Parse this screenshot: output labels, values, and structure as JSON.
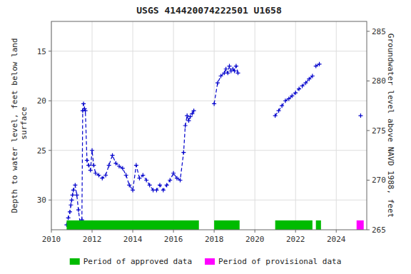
{
  "chart_data": {
    "type": "line",
    "title": "USGS 414420074222501 U1658",
    "y_label": "Depth to water level, feet below land\n surface",
    "y2_label": "Groundwater level above NAVD 1988, feet",
    "xlim": [
      2010,
      2025.5
    ],
    "xticks": [
      2010,
      2012,
      2014,
      2016,
      2018,
      2020,
      2022,
      2024
    ],
    "ylim": [
      33,
      12
    ],
    "yticks": [
      15,
      20,
      25,
      30
    ],
    "y2lim": [
      265,
      286
    ],
    "y2ticks": [
      265,
      270,
      275,
      280,
      285
    ],
    "grid": true,
    "legend": "bottom",
    "x": [
      2010.75,
      2010.83,
      2010.91,
      2010.96,
      2011.0,
      2011.04,
      2011.08,
      2011.17,
      2011.25,
      2011.33,
      2011.42,
      2011.5,
      2011.54,
      2011.58,
      2011.63,
      2011.67,
      2011.75,
      2011.83,
      2011.92,
      2012.0,
      2012.08,
      2012.17,
      2012.33,
      2012.5,
      2012.67,
      2012.83,
      2013.0,
      2013.17,
      2013.33,
      2013.5,
      2013.67,
      2013.83,
      2014.0,
      2014.17,
      2014.33,
      2014.5,
      2014.67,
      2014.83,
      2015.0,
      2015.17,
      2015.33,
      2015.5,
      2015.67,
      2015.83,
      2016.0,
      2016.17,
      2016.33,
      2016.5,
      2016.58,
      2016.67,
      2016.75,
      2016.83,
      2016.92,
      2017.0,
      null,
      2018.0,
      2018.17,
      2018.33,
      2018.5,
      2018.58,
      2018.67,
      2018.75,
      2018.83,
      2018.92,
      2019.0,
      2019.08,
      2019.17,
      null,
      2021.0,
      2021.17,
      2021.33,
      2021.5,
      2021.67,
      2021.83,
      2022.0,
      2022.17,
      2022.33,
      2022.5,
      2022.67,
      2022.83,
      null,
      2023.0,
      2023.17,
      null,
      2025.2
    ],
    "series": [
      {
        "color": "#0000cc",
        "marker": "plus",
        "line_style": "dashed",
        "values": [
          32.5,
          31.8,
          31.2,
          30.5,
          30.0,
          29.5,
          29.0,
          28.5,
          29.5,
          31.0,
          32.5,
          32.0,
          21.0,
          20.3,
          20.8,
          21.0,
          26.0,
          26.5,
          27.0,
          25.0,
          26.5,
          27.3,
          27.5,
          27.8,
          27.5,
          26.5,
          25.5,
          26.3,
          26.6,
          26.8,
          27.5,
          28.5,
          29.0,
          26.5,
          27.8,
          27.5,
          28.0,
          28.5,
          29.0,
          29.0,
          28.5,
          29.0,
          28.5,
          28.0,
          27.3,
          27.8,
          28.0,
          25.2,
          22.5,
          21.5,
          22.0,
          21.6,
          21.3,
          21.0,
          null,
          20.3,
          18.2,
          17.5,
          17.2,
          16.8,
          17.2,
          16.5,
          17.0,
          16.8,
          17.0,
          16.5,
          17.2,
          null,
          21.5,
          21.0,
          20.5,
          20.0,
          19.8,
          19.5,
          19.2,
          18.8,
          18.5,
          18.2,
          17.8,
          17.5,
          null,
          16.5,
          16.3,
          null,
          21.5
        ]
      }
    ],
    "bands": [
      {
        "name": "Period of approved data",
        "color": "#00bb00",
        "ranges": [
          [
            2010.75,
            2017.25
          ],
          [
            2018.0,
            2019.25
          ],
          [
            2021.0,
            2022.83
          ],
          [
            2023.0,
            2023.25
          ]
        ]
      },
      {
        "name": "Period of provisional data",
        "color": "#ff00ff",
        "ranges": [
          [
            2025.0,
            2025.35
          ]
        ]
      }
    ]
  }
}
